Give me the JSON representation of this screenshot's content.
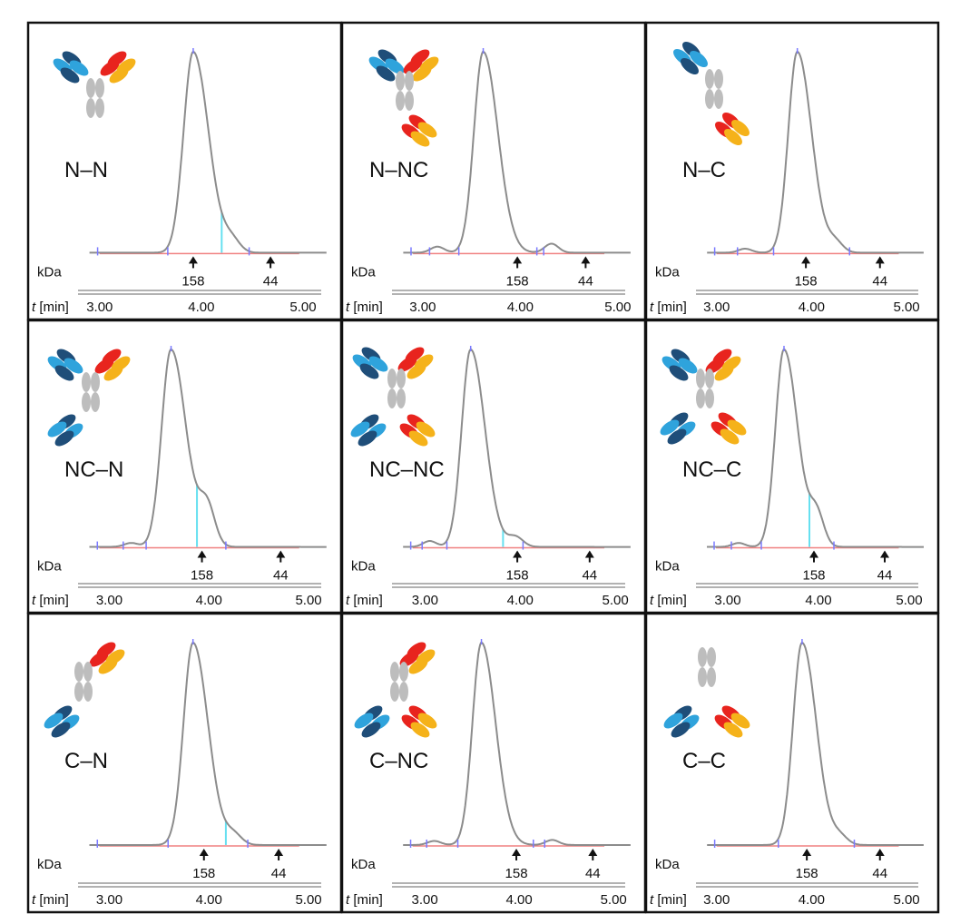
{
  "labels": {
    "kda": "kDa",
    "time_symbol": "t",
    "time_unit": "[min]"
  },
  "colors": {
    "panel_border": "#111111",
    "trace": "#8c8c8c",
    "baseline": "#f08080",
    "cyan_drop": "#66e0f0",
    "integration_tick": "#7a7aff",
    "domain_dark_blue": "#1f4e79",
    "domain_light_blue": "#2fa3dc",
    "domain_red": "#e8241e",
    "domain_orange": "#f5b21a",
    "fc_gray": "#bdbdbd"
  },
  "chart_data": [
    {
      "type": "line",
      "name": "N–N",
      "x_ticks": [
        "3.00",
        "4.00",
        "5.00"
      ],
      "xlim": [
        2.85,
        5.25
      ],
      "peak_time": 3.92,
      "shoulders": [
        {
          "x": 4.3,
          "h": 0.06
        }
      ],
      "small_bumps": [],
      "cyan_drop": 4.2,
      "mw_markers": [
        {
          "label": "158",
          "x": 3.92
        },
        {
          "label": "44",
          "x": 4.68
        }
      ]
    },
    {
      "type": "line",
      "name": "N–NC",
      "x_ticks": [
        "3.00",
        "4.00",
        "5.00"
      ],
      "xlim": [
        2.75,
        5.15
      ],
      "peak_time": 3.62,
      "shoulders": [],
      "small_bumps": [
        {
          "x": 3.15,
          "h": 0.03
        },
        {
          "x": 4.32,
          "h": 0.045
        }
      ],
      "cyan_drop": null,
      "mw_markers": [
        {
          "label": "158",
          "x": 3.97
        },
        {
          "label": "44",
          "x": 4.67
        }
      ]
    },
    {
      "type": "line",
      "name": "N–C",
      "x_ticks": [
        "3.00",
        "4.00",
        "5.00"
      ],
      "xlim": [
        2.85,
        5.2
      ],
      "peak_time": 3.85,
      "shoulders": [
        {
          "x": 4.25,
          "h": 0.05
        }
      ],
      "small_bumps": [
        {
          "x": 3.3,
          "h": 0.02
        }
      ],
      "cyan_drop": null,
      "mw_markers": [
        {
          "label": "158",
          "x": 3.94
        },
        {
          "label": "44",
          "x": 4.72
        }
      ]
    },
    {
      "type": "line",
      "name": "NC–N",
      "x_ticks": [
        "3.00",
        "4.00",
        "5.00"
      ],
      "xlim": [
        2.75,
        5.2
      ],
      "peak_time": 3.62,
      "shoulders": [
        {
          "x": 3.98,
          "h": 0.2
        }
      ],
      "small_bumps": [
        {
          "x": 3.22,
          "h": 0.02
        }
      ],
      "cyan_drop": 3.88,
      "mw_markers": [
        {
          "label": "158",
          "x": 3.93
        },
        {
          "label": "44",
          "x": 4.72
        }
      ]
    },
    {
      "type": "line",
      "name": "NC–NC",
      "x_ticks": [
        "3.00",
        "4.00",
        "5.00"
      ],
      "xlim": [
        2.72,
        5.18
      ],
      "peak_time": 3.48,
      "shoulders": [
        {
          "x": 3.95,
          "h": 0.05
        }
      ],
      "small_bumps": [
        {
          "x": 3.05,
          "h": 0.03
        }
      ],
      "cyan_drop": 3.82,
      "mw_markers": [
        {
          "label": "158",
          "x": 3.97
        },
        {
          "label": "44",
          "x": 4.73
        }
      ]
    },
    {
      "type": "line",
      "name": "NC–C",
      "x_ticks": [
        "3.00",
        "4.00",
        "5.00"
      ],
      "xlim": [
        2.72,
        5.18
      ],
      "peak_time": 3.62,
      "shoulders": [
        {
          "x": 3.98,
          "h": 0.16
        }
      ],
      "small_bumps": [
        {
          "x": 3.12,
          "h": 0.02
        }
      ],
      "cyan_drop": 3.9,
      "mw_markers": [
        {
          "label": "158",
          "x": 3.95
        },
        {
          "label": "44",
          "x": 4.73
        }
      ]
    },
    {
      "type": "line",
      "name": "C–N",
      "x_ticks": [
        "3.00",
        "4.00",
        "5.00"
      ],
      "xlim": [
        2.75,
        5.2
      ],
      "peak_time": 3.84,
      "shoulders": [
        {
          "x": 4.25,
          "h": 0.05
        }
      ],
      "small_bumps": [],
      "cyan_drop": 4.17,
      "mw_markers": [
        {
          "label": "158",
          "x": 3.95
        },
        {
          "label": "44",
          "x": 4.7
        }
      ]
    },
    {
      "type": "line",
      "name": "C–NC",
      "x_ticks": [
        "3.00",
        "4.00",
        "5.00"
      ],
      "xlim": [
        2.72,
        5.2
      ],
      "peak_time": 3.6,
      "shoulders": [],
      "small_bumps": [
        {
          "x": 3.1,
          "h": 0.02
        },
        {
          "x": 4.35,
          "h": 0.025
        }
      ],
      "cyan_drop": null,
      "mw_markers": [
        {
          "label": "158",
          "x": 3.97
        },
        {
          "label": "44",
          "x": 4.78
        }
      ]
    },
    {
      "type": "line",
      "name": "C–C",
      "x_ticks": [
        "3.00",
        "4.00",
        "5.00"
      ],
      "xlim": [
        2.85,
        5.2
      ],
      "peak_time": 3.9,
      "shoulders": [
        {
          "x": 4.3,
          "h": 0.04
        }
      ],
      "small_bumps": [],
      "cyan_drop": null,
      "mw_markers": [
        {
          "label": "158",
          "x": 3.95
        },
        {
          "label": "44",
          "x": 4.72
        }
      ]
    }
  ]
}
